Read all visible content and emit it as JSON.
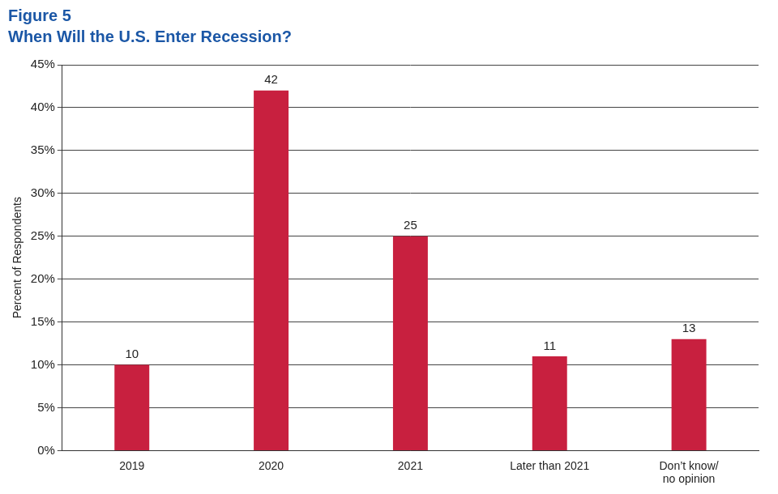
{
  "chart_data": {
    "type": "bar",
    "title": "Figure 5",
    "subtitle": "When Will the U.S. Enter Recession?",
    "y_label": "Percent of Respondents",
    "categories": [
      "2019",
      "2020",
      "2021",
      "Later than 2021",
      "Don’t know/ no opinion"
    ],
    "values": [
      10,
      42,
      25,
      11,
      13
    ],
    "color": "#c8203f",
    "ylim": [
      0,
      45
    ],
    "yticks": [
      {
        "value": 0,
        "label": "0%"
      },
      {
        "value": 5,
        "label": "5%"
      },
      {
        "value": 10,
        "label": "10%"
      },
      {
        "value": 15,
        "label": "15%"
      },
      {
        "value": 20,
        "label": "20%"
      },
      {
        "value": 25,
        "label": "25%"
      },
      {
        "value": 30,
        "label": "30%"
      },
      {
        "value": 35,
        "label": "35%"
      },
      {
        "value": 40,
        "label": "40%"
      },
      {
        "value": 45,
        "label": "45%"
      }
    ],
    "grid": true,
    "data_labels": true
  }
}
